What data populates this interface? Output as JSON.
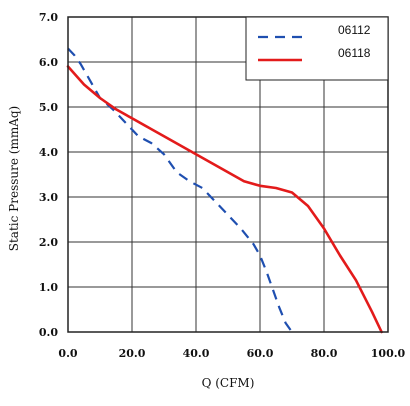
{
  "chart_data": {
    "type": "line",
    "xlabel": "Q (CFM)",
    "ylabel": "Static Pressure (mmAq)",
    "xlim": [
      0,
      100
    ],
    "ylim": [
      0,
      7
    ],
    "x_ticks": [
      "0.0",
      "20.0",
      "40.0",
      "60.0",
      "80.0",
      "100.0"
    ],
    "y_ticks": [
      "0.0",
      "1.0",
      "2.0",
      "3.0",
      "4.0",
      "5.0",
      "6.0",
      "7.0"
    ],
    "grid": true,
    "legend_position": "top-right",
    "series": [
      {
        "name": "06112",
        "color": "#1f4fb0",
        "style": "dashed",
        "x": [
          0,
          2,
          4,
          6,
          8,
          10,
          14,
          18,
          22,
          26,
          30,
          34,
          38,
          42,
          46,
          50,
          54,
          58,
          60,
          62,
          64,
          66,
          68,
          70
        ],
        "y": [
          6.3,
          6.15,
          5.95,
          5.7,
          5.45,
          5.2,
          4.95,
          4.65,
          4.35,
          4.2,
          3.95,
          3.55,
          3.35,
          3.2,
          2.9,
          2.6,
          2.3,
          1.95,
          1.7,
          1.35,
          0.95,
          0.55,
          0.2,
          0.0
        ]
      },
      {
        "name": "06118",
        "color": "#e31b1b",
        "style": "solid",
        "x": [
          0,
          5,
          10,
          15,
          20,
          25,
          30,
          35,
          40,
          45,
          50,
          55,
          60,
          65,
          70,
          75,
          80,
          85,
          90,
          95,
          98
        ],
        "y": [
          5.9,
          5.5,
          5.2,
          4.95,
          4.75,
          4.55,
          4.35,
          4.15,
          3.95,
          3.75,
          3.55,
          3.35,
          3.25,
          3.2,
          3.1,
          2.8,
          2.3,
          1.7,
          1.15,
          0.45,
          0.0
        ]
      }
    ]
  }
}
